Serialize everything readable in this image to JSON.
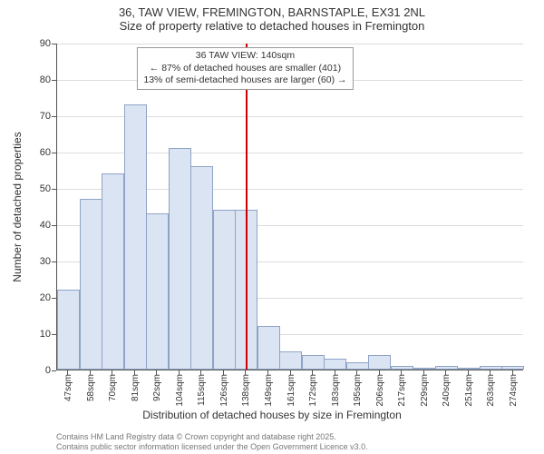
{
  "title": {
    "line1": "36, TAW VIEW, FREMINGTON, BARNSTAPLE, EX31 2NL",
    "line2": "Size of property relative to detached houses in Fremington"
  },
  "chart": {
    "type": "histogram",
    "background_color": "#ffffff",
    "bar_fill": "#dbe4f2",
    "bar_border": "#8fa3c6",
    "grid_color": "#bbbbbb",
    "axis_color": "#555555",
    "ref_line_color": "#cc0000",
    "ylabel": "Number of detached properties",
    "xlabel": "Distribution of detached houses by size in Fremington",
    "label_fontsize": 12,
    "tick_fontsize": 11,
    "ylim": [
      0,
      90
    ],
    "ytick_step": 10,
    "categories": [
      "47sqm",
      "58sqm",
      "70sqm",
      "81sqm",
      "92sqm",
      "104sqm",
      "115sqm",
      "126sqm",
      "138sqm",
      "149sqm",
      "161sqm",
      "172sqm",
      "183sqm",
      "195sqm",
      "206sqm",
      "217sqm",
      "229sqm",
      "240sqm",
      "251sqm",
      "263sqm",
      "274sqm"
    ],
    "values": [
      22,
      47,
      54,
      73,
      43,
      61,
      56,
      44,
      44,
      12,
      5,
      4,
      3,
      2,
      4,
      1,
      0,
      1,
      0,
      1,
      1
    ],
    "ref_line_index": 8.5,
    "annotation": {
      "line1": "36 TAW VIEW: 140sqm",
      "line2": "← 87% of detached houses are smaller (401)",
      "line3": "13% of semi-detached houses are larger (60) →"
    }
  },
  "footer": {
    "line1": "Contains HM Land Registry data © Crown copyright and database right 2025.",
    "line2": "Contains public sector information licensed under the Open Government Licence v3.0."
  }
}
